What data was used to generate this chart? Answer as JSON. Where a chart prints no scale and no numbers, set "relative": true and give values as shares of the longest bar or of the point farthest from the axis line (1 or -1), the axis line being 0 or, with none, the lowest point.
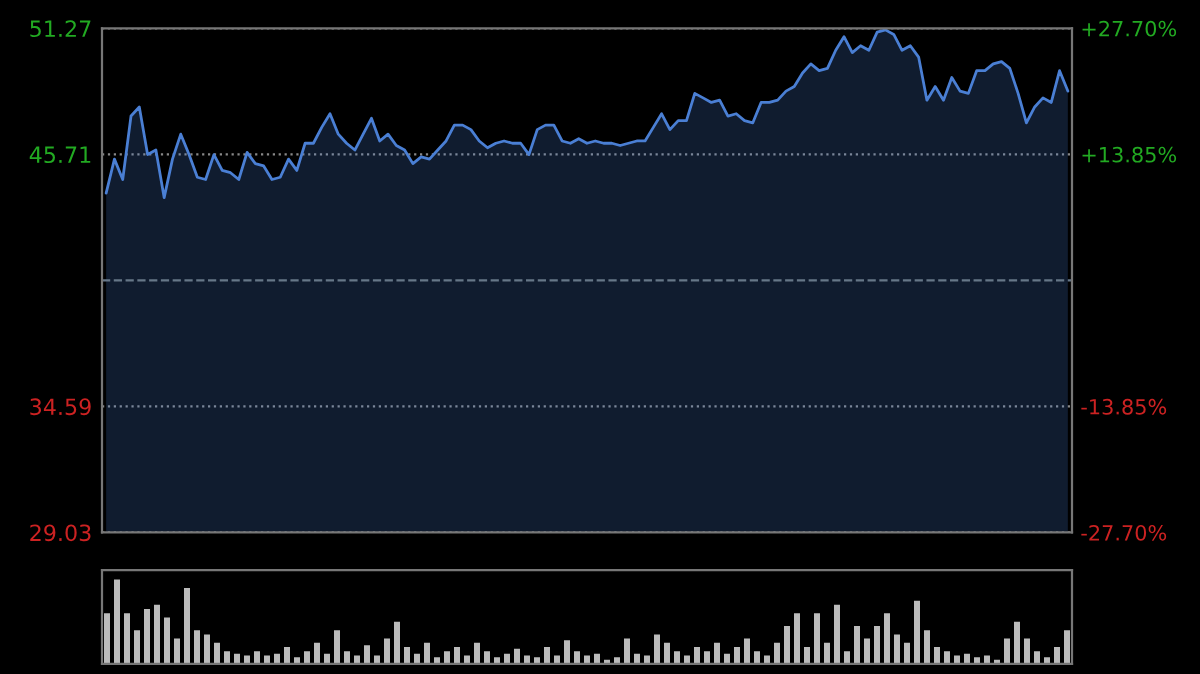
{
  "chart_data": [
    {
      "type": "area",
      "categories": [
        null,
        null,
        null,
        null,
        null,
        null,
        null,
        null,
        null,
        null,
        null,
        null,
        null,
        null,
        null,
        null,
        null,
        null,
        null,
        null,
        null,
        null,
        null,
        null,
        null,
        null,
        null,
        null,
        null,
        null,
        null,
        null,
        null,
        null,
        null,
        null,
        null,
        null,
        null,
        null,
        null,
        null,
        null,
        null,
        null,
        null,
        null,
        null,
        null,
        null,
        null,
        null,
        null,
        null,
        null,
        null,
        null,
        null,
        null,
        null,
        null,
        null,
        null,
        null,
        null,
        null,
        null,
        null,
        null,
        null,
        null,
        null,
        null,
        null,
        null,
        null,
        null,
        null,
        null,
        null,
        null,
        null,
        null,
        null,
        null,
        null,
        null,
        null,
        null,
        null,
        null,
        null,
        null,
        null,
        null,
        null,
        null,
        null,
        null,
        null,
        null,
        null,
        null,
        null,
        null,
        null,
        null,
        null,
        null,
        null,
        null,
        null,
        null,
        null,
        null,
        null,
        null
      ],
      "series": [
        {
          "color": "#4a7fd4",
          "values": [
            44.0,
            45.5,
            44.6,
            47.4,
            47.8,
            45.7,
            45.9,
            43.8,
            45.5,
            46.6,
            45.7,
            44.7,
            44.6,
            45.7,
            45.0,
            44.9,
            44.6,
            45.8,
            45.3,
            45.2,
            44.6,
            44.7,
            45.5,
            45.0,
            46.2,
            46.2,
            46.9,
            47.5,
            46.6,
            46.2,
            45.9,
            46.6,
            47.3,
            46.3,
            46.6,
            46.1,
            45.9,
            45.3,
            45.6,
            45.5,
            45.9,
            46.3,
            47.0,
            47.0,
            46.8,
            46.3,
            46.0,
            46.2,
            46.3,
            46.2,
            46.2,
            45.7,
            46.8,
            47.0,
            47.0,
            46.3,
            46.2,
            46.4,
            46.2,
            46.3,
            46.2,
            46.2,
            46.1,
            46.2,
            46.3,
            46.3,
            46.9,
            47.5,
            46.8,
            47.2,
            47.2,
            48.4,
            48.2,
            48.0,
            48.1,
            47.4,
            47.5,
            47.2,
            47.1,
            48.0,
            48.0,
            48.1,
            48.5,
            48.7,
            49.3,
            49.7,
            49.4,
            49.5,
            50.3,
            50.9,
            50.2,
            50.5,
            50.3,
            51.1,
            51.2,
            51.0,
            50.3,
            50.5,
            50.0,
            48.1,
            48.7,
            48.1,
            49.1,
            48.5,
            48.4,
            49.4,
            49.4,
            49.7,
            49.8,
            49.5,
            48.4,
            47.1,
            47.8,
            48.2,
            48.0,
            49.4,
            48.5
          ]
        }
      ],
      "ylim": [
        29.03,
        51.27
      ],
      "yticks": [
        29.03,
        34.59,
        45.71,
        51.27
      ],
      "y2lim": [
        -27.7,
        27.7
      ],
      "y2ticks": [
        {
          "value": -27.7,
          "label": "-27.70%"
        },
        {
          "value": -13.85,
          "label": "-13.85%"
        },
        {
          "value": 13.85,
          "label": "+13.85%"
        },
        {
          "value": 27.7,
          "label": "+27.70%"
        }
      ],
      "ref_lines": [
        {
          "axis": "y",
          "value": 40.15,
          "line_style": "dashed",
          "color": "#667788"
        }
      ],
      "grid": "y"
    },
    {
      "type": "bar",
      "relative": true,
      "categories": [
        null,
        null,
        null,
        null,
        null,
        null,
        null,
        null,
        null,
        null,
        null,
        null,
        null,
        null,
        null,
        null,
        null,
        null,
        null,
        null,
        null,
        null,
        null,
        null,
        null,
        null,
        null,
        null,
        null,
        null,
        null,
        null,
        null,
        null,
        null,
        null,
        null,
        null,
        null,
        null,
        null,
        null,
        null,
        null,
        null,
        null,
        null,
        null,
        null,
        null,
        null,
        null,
        null,
        null,
        null,
        null,
        null,
        null,
        null,
        null,
        null,
        null,
        null,
        null,
        null,
        null,
        null,
        null,
        null,
        null,
        null,
        null,
        null,
        null,
        null,
        null,
        null,
        null,
        null,
        null,
        null,
        null,
        null,
        null,
        null,
        null,
        null,
        null,
        null,
        null,
        null,
        null,
        null,
        null,
        null,
        null,
        null
      ],
      "values": [
        0.6,
        1.0,
        0.6,
        0.4,
        0.65,
        0.7,
        0.55,
        0.3,
        0.9,
        0.4,
        0.35,
        0.25,
        0.15,
        0.12,
        0.1,
        0.15,
        0.1,
        0.12,
        0.2,
        0.08,
        0.15,
        0.25,
        0.12,
        0.4,
        0.15,
        0.1,
        0.22,
        0.1,
        0.3,
        0.5,
        0.2,
        0.12,
        0.25,
        0.08,
        0.15,
        0.2,
        0.1,
        0.25,
        0.15,
        0.08,
        0.12,
        0.18,
        0.1,
        0.08,
        0.2,
        0.1,
        0.28,
        0.15,
        0.1,
        0.12,
        0.05,
        0.08,
        0.3,
        0.12,
        0.1,
        0.35,
        0.25,
        0.15,
        0.1,
        0.2,
        0.15,
        0.25,
        0.12,
        0.2,
        0.3,
        0.15,
        0.1,
        0.25,
        0.45,
        0.6,
        0.2,
        0.6,
        0.25,
        0.7,
        0.15,
        0.45,
        0.3,
        0.45,
        0.6,
        0.35,
        0.25,
        0.75,
        0.4,
        0.2,
        0.15,
        0.1,
        0.12,
        0.08,
        0.1,
        0.05,
        0.3,
        0.5,
        0.3,
        0.15,
        0.08,
        0.2,
        0.4
      ],
      "color": "#bbbbbb"
    }
  ]
}
